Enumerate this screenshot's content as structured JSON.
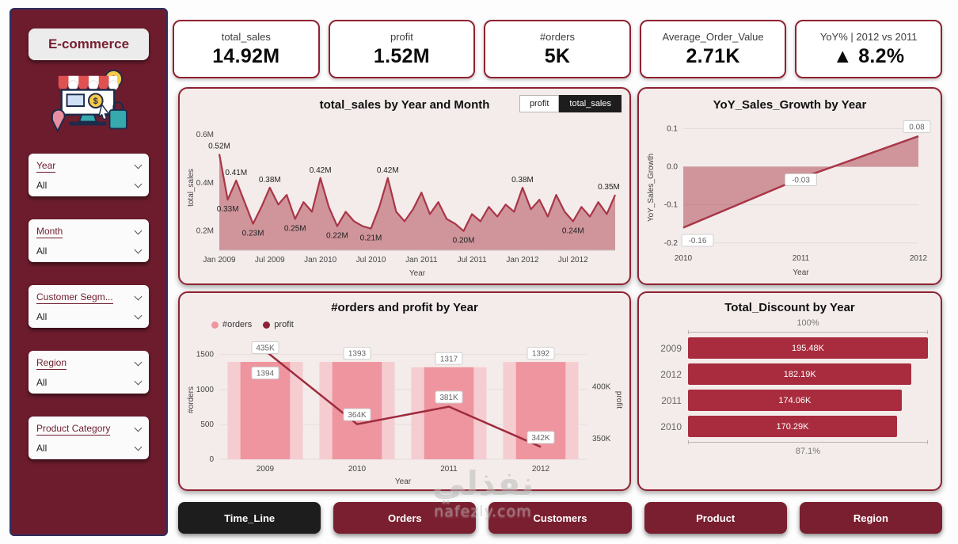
{
  "sidebar": {
    "title": "E-commerce",
    "filters": [
      {
        "label": "Year",
        "value": "All"
      },
      {
        "label": "Month",
        "value": "All"
      },
      {
        "label": "Customer Segm...",
        "value": "All"
      },
      {
        "label": "Region",
        "value": "All"
      },
      {
        "label": "Product Category",
        "value": "All"
      }
    ]
  },
  "kpis": [
    {
      "label": "total_sales",
      "value": "14.92M"
    },
    {
      "label": "profit",
      "value": "1.52M"
    },
    {
      "label": "#orders",
      "value": "5K"
    },
    {
      "label": "Average_Order_Value",
      "value": "2.71K"
    },
    {
      "label": "YoY% | 2012 vs 2011",
      "value": "▲ 8.2%"
    }
  ],
  "nav": [
    {
      "label": "Time_Line",
      "active": true
    },
    {
      "label": "Orders",
      "active": false
    },
    {
      "label": "Customers",
      "active": false
    },
    {
      "label": "Product",
      "active": false
    },
    {
      "label": "Region",
      "active": false
    }
  ],
  "watermark": {
    "arabic": "نفذلي",
    "latin": "nafezly.com"
  },
  "colors": {
    "accent": "#8f2232",
    "sidebar": "#6d1c2d",
    "line": "#a93646",
    "area": "rgba(170,62,76,0.5)",
    "bar": "#ee959f",
    "bar_backdrop": "#f5cdd1",
    "dark_bar": "#a82c3e",
    "nav": "#7a1f2f",
    "nav_active": "#1d1d1d"
  },
  "chart_data": [
    {
      "type": "area",
      "title": "total_sales by Year and Month",
      "toggles": [
        {
          "label": "profit",
          "selected": false
        },
        {
          "label": "total_sales",
          "selected": true
        }
      ],
      "xlabel": "Year",
      "ylabel": "total_sales",
      "xticks": [
        "Jan 2009",
        "Jul 2009",
        "Jan 2010",
        "Jul 2010",
        "Jan 2011",
        "Jul 2011",
        "Jan 2012",
        "Jul 2012"
      ],
      "yticks": [
        {
          "v": 0.2,
          "t": "0.2M"
        },
        {
          "v": 0.4,
          "t": "0.4M"
        },
        {
          "v": 0.6,
          "t": "0.6M"
        }
      ],
      "ylim": [
        0.12,
        0.64
      ],
      "x_unit": "month",
      "values": [
        0.52,
        0.33,
        0.41,
        0.32,
        0.23,
        0.3,
        0.38,
        0.31,
        0.35,
        0.25,
        0.32,
        0.28,
        0.42,
        0.3,
        0.22,
        0.28,
        0.24,
        0.22,
        0.21,
        0.3,
        0.42,
        0.28,
        0.24,
        0.29,
        0.36,
        0.27,
        0.32,
        0.25,
        0.23,
        0.2,
        0.27,
        0.24,
        0.3,
        0.26,
        0.31,
        0.28,
        0.38,
        0.29,
        0.33,
        0.26,
        0.35,
        0.28,
        0.24,
        0.3,
        0.26,
        0.32,
        0.27,
        0.35
      ],
      "point_labels": [
        {
          "i": 0,
          "text": "0.52M",
          "pos": "above"
        },
        {
          "i": 1,
          "text": "0.33M",
          "pos": "below"
        },
        {
          "i": 2,
          "text": "0.41M",
          "pos": "above"
        },
        {
          "i": 4,
          "text": "0.23M",
          "pos": "below"
        },
        {
          "i": 6,
          "text": "0.38M",
          "pos": "above"
        },
        {
          "i": 9,
          "text": "0.25M",
          "pos": "below"
        },
        {
          "i": 12,
          "text": "0.42M",
          "pos": "above"
        },
        {
          "i": 14,
          "text": "0.22M",
          "pos": "below"
        },
        {
          "i": 18,
          "text": "0.21M",
          "pos": "below"
        },
        {
          "i": 20,
          "text": "0.42M",
          "pos": "above"
        },
        {
          "i": 29,
          "text": "0.20M",
          "pos": "below"
        },
        {
          "i": 36,
          "text": "0.38M",
          "pos": "above"
        },
        {
          "i": 42,
          "text": "0.24M",
          "pos": "below"
        },
        {
          "i": 47,
          "text": "0.35M",
          "pos": "above"
        }
      ]
    },
    {
      "type": "area",
      "title": "YoY_Sales_Growth by Year",
      "xlabel": "Year",
      "ylabel": "YoY_Sales_Growth",
      "categories": [
        "2010",
        "2011",
        "2012"
      ],
      "values": [
        -0.16,
        -0.03,
        0.08
      ],
      "point_labels": [
        "-0.16",
        "-0.03",
        "0.08"
      ],
      "yticks": [
        {
          "v": 0.1,
          "t": "0.1"
        },
        {
          "v": 0.0,
          "t": "0.0"
        },
        {
          "v": -0.1,
          "t": "-0.1"
        },
        {
          "v": -0.2,
          "t": "-0.2"
        }
      ],
      "ylim": [
        -0.215,
        0.105
      ]
    },
    {
      "type": "combo",
      "title": "#orders and profit by Year",
      "xlabel": "Year",
      "categories": [
        "2009",
        "2010",
        "2011",
        "2012"
      ],
      "legend": [
        {
          "name": "#orders",
          "color": "#ee959f"
        },
        {
          "name": "profit",
          "color": "#8d2237"
        }
      ],
      "bars": {
        "name": "#orders",
        "values": [
          1394,
          1393,
          1317,
          1392
        ],
        "labels": [
          "1394",
          "1393",
          "1317",
          "1392"
        ]
      },
      "line": {
        "name": "profit",
        "values": [
          435,
          364,
          381,
          342
        ],
        "labels": [
          "435K",
          "364K",
          "381K",
          "342K"
        ]
      },
      "left_axis": {
        "label": "#orders",
        "ticks": [
          0,
          500,
          1000,
          1500
        ],
        "lim": [
          0,
          1700
        ]
      },
      "right_axis": {
        "label": "profit",
        "ticks": [
          {
            "v": 350,
            "t": "350K"
          },
          {
            "v": 400,
            "t": "400K"
          }
        ],
        "lim": [
          330,
          445
        ]
      }
    },
    {
      "type": "hbar",
      "title": "Total_Discount by Year",
      "categories": [
        "2009",
        "2012",
        "2011",
        "2010"
      ],
      "values": [
        195.48,
        182.19,
        174.06,
        170.29
      ],
      "labels": [
        "195.48K",
        "182.19K",
        "174.06K",
        "170.29K"
      ],
      "top_label": "100%",
      "bottom_label": "87.1%"
    }
  ]
}
